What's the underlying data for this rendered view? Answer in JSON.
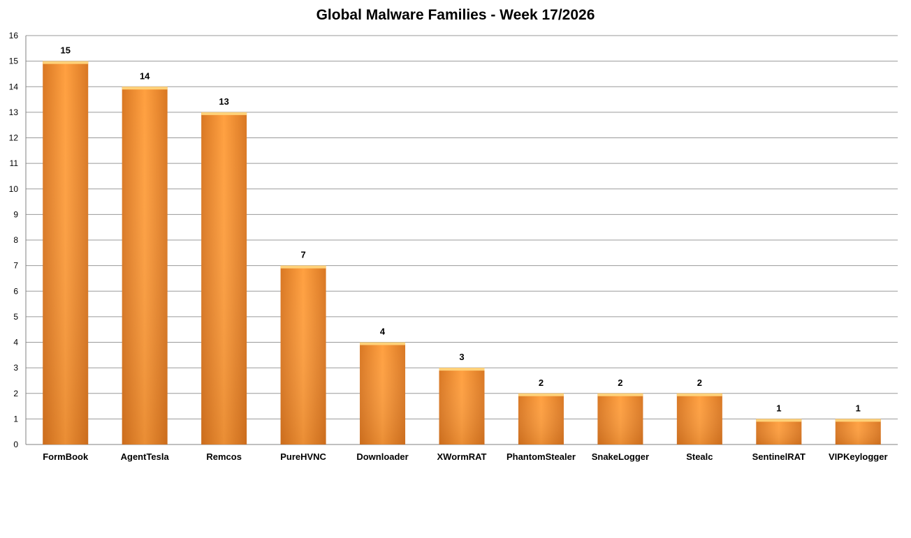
{
  "chart_data": {
    "type": "bar",
    "title": "Global Malware Families - Week 17/2026",
    "categories": [
      "FormBook",
      "AgentTesla",
      "Remcos",
      "PureHVNC",
      "Downloader",
      "XWormRAT",
      "PhantomStealer",
      "SnakeLogger",
      "Stealc",
      "SentinelRAT",
      "VIPKeylogger"
    ],
    "values": [
      15,
      14,
      13,
      7,
      4,
      3,
      2,
      2,
      2,
      1,
      1
    ],
    "xlabel": "",
    "ylabel": "",
    "ylim": [
      0,
      16
    ],
    "yticks": [
      "0",
      "1",
      "2",
      "3",
      "4",
      "5",
      "6",
      "7",
      "8",
      "9",
      "10",
      "11",
      "12",
      "13",
      "14",
      "15",
      "16"
    ],
    "grid": true,
    "legend": "none",
    "bar_color": "#F7941D",
    "data_labels": true
  }
}
